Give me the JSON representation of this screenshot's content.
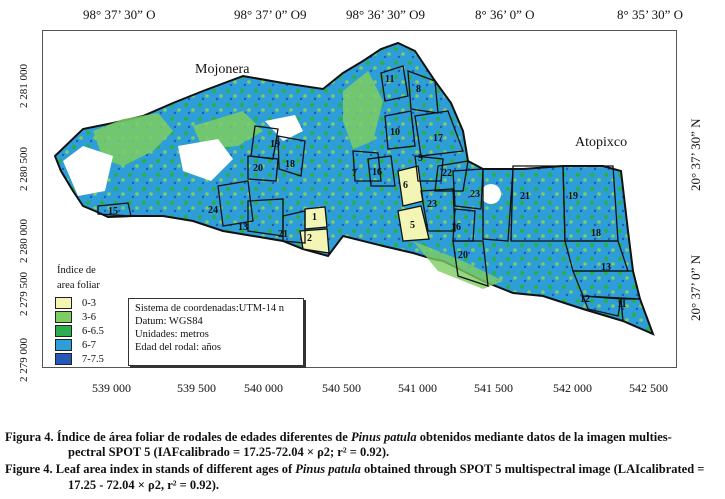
{
  "top_coords": [
    "98° 37’ 30” O",
    "98° 37’ 0” O9",
    "98° 36’ 30” O9",
    "8° 36’ 0” O",
    "8° 35’ 30” O"
  ],
  "left_y_ticks": [
    "2 281 000",
    "2 280 500",
    "2 280 000",
    "2 279 500",
    "2 279 000"
  ],
  "right_coords": [
    "20° 37’ 30” N",
    "20° 37’ 0” N"
  ],
  "x_ticks": [
    "539 000",
    "539 500",
    "540 000",
    "540 500",
    "541 000",
    "541 500",
    "542 000",
    "542 500"
  ],
  "places": {
    "mojonera": "Mojonera",
    "atopixco": "Atopixco"
  },
  "stand_labels": [
    "11",
    "8",
    "10",
    "17",
    "19",
    "18",
    "20",
    "7",
    "16",
    "9",
    "22",
    "6",
    "23",
    "21",
    "19",
    "15",
    "24",
    "1",
    "13",
    "21",
    "2",
    "5",
    "16",
    "23",
    "18",
    "20",
    "13",
    "12",
    "11"
  ],
  "legend": {
    "title_line1": "Índice de",
    "title_line2": "area foliar",
    "items": [
      {
        "label": "0-3",
        "color": "#f3f5b4"
      },
      {
        "label": "3-6",
        "color": "#7ecd62"
      },
      {
        "label": "6-6.5",
        "color": "#2aae4e"
      },
      {
        "label": "6-7",
        "color": "#2d9ed8"
      },
      {
        "label": "7-7.5",
        "color": "#2459b8"
      }
    ]
  },
  "info": [
    "Sistema de coordenadas:UTM-14 n",
    "Datum: WGS84",
    "Unidades: metros",
    "Edad del rodal: años"
  ],
  "caption_es": {
    "prefix": "Figura 4.  Índice de área foliar de rodales de edades diferentes de ",
    "species": "Pinus patula",
    "suffix": " obtenidos mediante datos de la imagen multies-",
    "line2": "pectral SPOT 5 (IAFcalibrado = 17.25-72.04 × ρ2; r² = 0.92)."
  },
  "caption_en": {
    "prefix": "Figure 4.  Leaf area index in stands of different ages of ",
    "species": "Pinus patula",
    "suffix": " obtained through SPOT 5 multispectral image (LAIcalibrated =",
    "line2": "17.25 - 72.04 × ρ2, r² = 0.92)."
  }
}
